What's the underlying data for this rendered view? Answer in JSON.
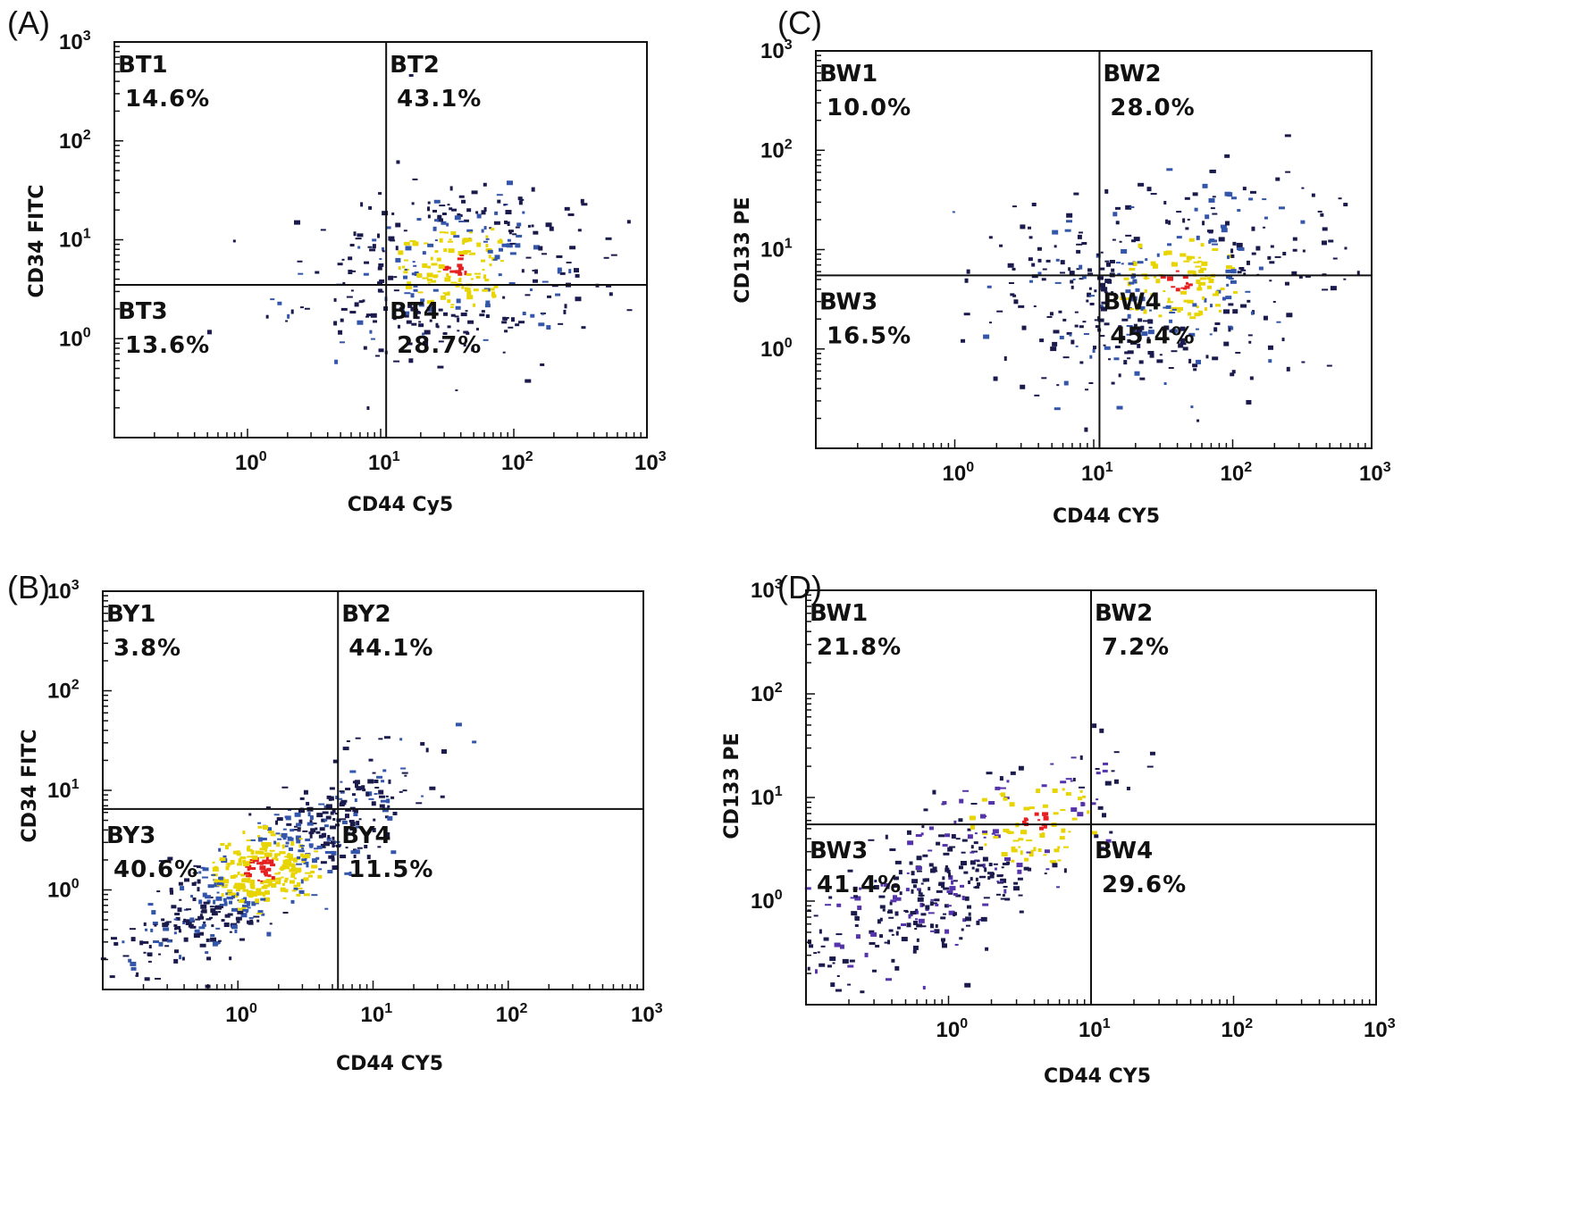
{
  "chart_data": [
    {
      "panel": "(A)",
      "type": "scatter",
      "xlabel": "CD44 Cy5",
      "ylabel": "CD34 FITC",
      "x_scale": "log",
      "y_scale": "log",
      "xlim": [
        0.1,
        1000
      ],
      "ylim": [
        0.1,
        1000
      ],
      "x_ticks": [
        "10",
        "10",
        "10",
        "10"
      ],
      "x_tick_exps": [
        "0",
        "1",
        "2",
        "3"
      ],
      "y_ticks": [
        "10",
        "10",
        "10",
        "10"
      ],
      "y_tick_exps": [
        "0",
        "1",
        "2",
        "3"
      ],
      "gate": {
        "x": 11,
        "y": 3.5
      },
      "quadrants": [
        {
          "name": "BT1",
          "percent": "14.6%"
        },
        {
          "name": "BT2",
          "percent": "43.1%"
        },
        {
          "name": "BT3",
          "percent": "13.6%"
        },
        {
          "name": "BT4",
          "percent": "28.7%"
        }
      ],
      "population": {
        "center": [
          35,
          5
        ],
        "spread": [
          0.55,
          0.45
        ],
        "corr": 0.3,
        "count": 420,
        "hot_center": [
          38,
          5.5
        ]
      },
      "colors": [
        "#1a1a4d",
        "#3355aa",
        "#e8d400",
        "#e62020"
      ]
    },
    {
      "panel": "(B)",
      "type": "scatter",
      "xlabel": "CD44 CY5",
      "ylabel": "CD34 FITC",
      "x_scale": "log",
      "y_scale": "log",
      "xlim": [
        0.1,
        1000
      ],
      "ylim": [
        0.1,
        1000
      ],
      "x_ticks": [
        "10",
        "10",
        "10",
        "10"
      ],
      "x_tick_exps": [
        "0",
        "1",
        "2",
        "3"
      ],
      "y_ticks": [
        "10",
        "10",
        "10",
        "10"
      ],
      "y_tick_exps": [
        "0",
        "1",
        "2",
        "3"
      ],
      "gate": {
        "x": 5.5,
        "y": 6.5
      },
      "quadrants": [
        {
          "name": "BY1",
          "percent": "3.8%"
        },
        {
          "name": "BY2",
          "percent": "44.1%"
        },
        {
          "name": "BY3",
          "percent": "40.6%"
        },
        {
          "name": "BY4",
          "percent": "11.5%"
        }
      ],
      "population": {
        "center": [
          1.5,
          1.5
        ],
        "spread": [
          0.5,
          0.5
        ],
        "corr": 0.85,
        "count": 650,
        "hot_center": [
          1.5,
          1.6
        ]
      },
      "colors": [
        "#1a1a4d",
        "#3355aa",
        "#e8d400",
        "#e62020"
      ]
    },
    {
      "panel": "(C)",
      "type": "scatter",
      "xlabel": "CD44 CY5",
      "ylabel": "CD133 PE",
      "x_scale": "log",
      "y_scale": "log",
      "xlim": [
        0.1,
        1000
      ],
      "ylim": [
        0.1,
        1000
      ],
      "x_ticks": [
        "10",
        "10",
        "10",
        "10"
      ],
      "x_tick_exps": [
        "0",
        "1",
        "2",
        "3"
      ],
      "y_ticks": [
        "10",
        "10",
        "10",
        "10"
      ],
      "y_tick_exps": [
        "0",
        "1",
        "2",
        "3"
      ],
      "gate": {
        "x": 11,
        "y": 5.5
      },
      "quadrants": [
        {
          "name": "BW1",
          "percent": "10.0%"
        },
        {
          "name": "BW2",
          "percent": "28.0%"
        },
        {
          "name": "BW3",
          "percent": "16.5%"
        },
        {
          "name": "BW4",
          "percent": "45.4%"
        }
      ],
      "population": {
        "center": [
          30,
          4
        ],
        "spread": [
          0.6,
          0.5
        ],
        "corr": 0.2,
        "count": 480,
        "hot_center": [
          40,
          5
        ]
      },
      "colors": [
        "#1a1a4d",
        "#3355aa",
        "#e8d400",
        "#e62020"
      ]
    },
    {
      "panel": "(D)",
      "type": "scatter",
      "xlabel": "CD44 CY5",
      "ylabel": "CD133 PE",
      "x_scale": "log",
      "y_scale": "log",
      "xlim": [
        0.1,
        1000
      ],
      "ylim": [
        0.1,
        1000
      ],
      "x_ticks": [
        "10",
        "10",
        "10",
        "10"
      ],
      "x_tick_exps": [
        "0",
        "1",
        "2",
        "3"
      ],
      "y_ticks": [
        "10",
        "10",
        "10",
        "10"
      ],
      "y_tick_exps": [
        "0",
        "1",
        "2",
        "3"
      ],
      "gate": {
        "x": 10,
        "y": 5.5
      },
      "quadrants": [
        {
          "name": "BW1",
          "percent": "21.8%"
        },
        {
          "name": "BW2",
          "percent": "7.2%"
        },
        {
          "name": "BW3",
          "percent": "41.4%"
        },
        {
          "name": "BW4",
          "percent": "29.6%"
        }
      ],
      "population": {
        "center": [
          1.2,
          1.8
        ],
        "spread": [
          0.5,
          0.5
        ],
        "corr": 0.75,
        "count": 420,
        "hot_center": [
          4,
          6
        ]
      },
      "colors": [
        "#1a1a4d",
        "#5533aa",
        "#e8d400",
        "#e62020"
      ]
    }
  ]
}
